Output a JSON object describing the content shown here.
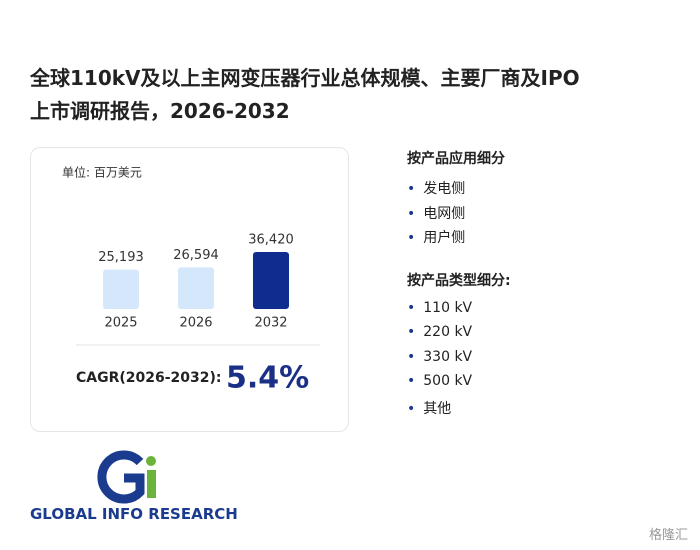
{
  "header": {
    "title_lines": [
      "全球110kV及以上主网变压器行业总体规模、主要厂商及IPO",
      "上市调研报告，2026-2032"
    ]
  },
  "chart_data": {
    "type": "bar",
    "unit": "单位: 百万美元",
    "categories": [
      "2025",
      "2026",
      "2032"
    ],
    "values": [
      25193,
      26594,
      36420
    ],
    "value_labels": [
      "25,193",
      "26,594",
      "36,420"
    ],
    "colors": [
      "#d4e7fb",
      "#d4e7fb",
      "#0f2d8f"
    ]
  },
  "cagr": {
    "label": "CAGR(2026-2032):",
    "value": "5.4%"
  },
  "segments": [
    {
      "title": "按产品应用细分",
      "items": [
        "发电侧",
        "电网侧",
        "用户侧"
      ]
    },
    {
      "title": "按产品类型细分:",
      "items": [
        "110 kV",
        "220 kV",
        "330 kV",
        "500 kV",
        "其他"
      ]
    }
  ],
  "logo": {
    "text": "GLOBAL INFO RESEARCH"
  },
  "watermark": "格隆汇"
}
